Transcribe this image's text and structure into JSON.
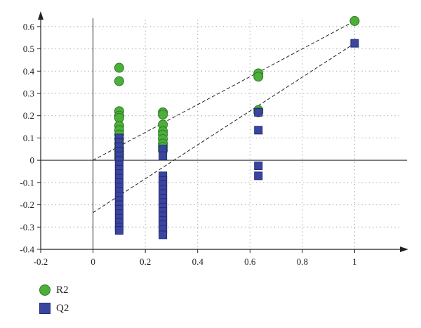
{
  "chart_data": {
    "type": "scatter",
    "xlim": [
      -0.2,
      1.2
    ],
    "ylim": [
      -0.4,
      0.65
    ],
    "x_ticks": [
      -0.2,
      0,
      0.2,
      0.4,
      0.6,
      0.8,
      1
    ],
    "y_ticks": [
      -0.4,
      -0.3,
      -0.2,
      -0.1,
      0,
      0.1,
      0.2,
      0.3,
      0.4,
      0.5,
      0.6
    ],
    "x_tick_labels": [
      "-0.2",
      "0",
      "0.2",
      "0.4",
      "0.6",
      "0.8",
      "1"
    ],
    "y_tick_labels": [
      "-0.4",
      "-0.3",
      "-0.2",
      "-0.1",
      "0",
      "0.1",
      "0.2",
      "0.3",
      "0.4",
      "0.5",
      "0.6"
    ],
    "grid": true,
    "legend_placement": "bottom-left",
    "series": [
      {
        "name": "R2",
        "marker": "circle",
        "color": "#4caf3a",
        "edge_color": "#2d7a24",
        "points": [
          [
            1,
            0.625
          ],
          [
            0.632,
            0.39
          ],
          [
            0.632,
            0.375
          ],
          [
            0.632,
            0.225
          ],
          [
            0.632,
            0.215
          ],
          [
            0.267,
            0.215
          ],
          [
            0.267,
            0.205
          ],
          [
            0.267,
            0.16
          ],
          [
            0.267,
            0.13
          ],
          [
            0.267,
            0.115
          ],
          [
            0.267,
            0.095
          ],
          [
            0.267,
            0.075
          ],
          [
            0.267,
            0.06
          ],
          [
            0.267,
            0.045
          ],
          [
            0.1,
            0.415
          ],
          [
            0.1,
            0.355
          ],
          [
            0.1,
            0.22
          ],
          [
            0.1,
            0.2
          ],
          [
            0.1,
            0.19
          ],
          [
            0.1,
            0.155
          ],
          [
            0.1,
            0.135
          ],
          [
            0.1,
            0.115
          ],
          [
            0.1,
            0.095
          ],
          [
            0.1,
            0.075
          ],
          [
            0.1,
            0.055
          ],
          [
            0.1,
            0.04
          ],
          [
            0.1,
            0.025
          ],
          [
            0.1,
            0.01
          ]
        ],
        "trend": {
          "intercept": 0,
          "slope": 0.625
        }
      },
      {
        "name": "Q2",
        "marker": "square",
        "color": "#3a45a0",
        "edge_color": "#232b72",
        "points": [
          [
            1,
            0.525
          ],
          [
            0.632,
            0.215
          ],
          [
            0.632,
            0.135
          ],
          [
            0.632,
            -0.025
          ],
          [
            0.632,
            -0.07
          ],
          [
            0.267,
            0.05
          ],
          [
            0.267,
            0.02
          ],
          [
            0.267,
            -0.07
          ],
          [
            0.267,
            -0.09
          ],
          [
            0.267,
            -0.11
          ],
          [
            0.267,
            -0.13
          ],
          [
            0.267,
            -0.15
          ],
          [
            0.267,
            -0.17
          ],
          [
            0.267,
            -0.19
          ],
          [
            0.267,
            -0.21
          ],
          [
            0.267,
            -0.23
          ],
          [
            0.267,
            -0.25
          ],
          [
            0.267,
            -0.27
          ],
          [
            0.267,
            -0.29
          ],
          [
            0.267,
            -0.31
          ],
          [
            0.267,
            -0.335
          ],
          [
            0.1,
            0.1
          ],
          [
            0.1,
            0.08
          ],
          [
            0.1,
            0.06
          ],
          [
            0.1,
            0.04
          ],
          [
            0.1,
            0.02
          ],
          [
            0.1,
            0.0
          ],
          [
            0.1,
            -0.02
          ],
          [
            0.1,
            -0.04
          ],
          [
            0.1,
            -0.06
          ],
          [
            0.1,
            -0.08
          ],
          [
            0.1,
            -0.1
          ],
          [
            0.1,
            -0.12
          ],
          [
            0.1,
            -0.14
          ],
          [
            0.1,
            -0.16
          ],
          [
            0.1,
            -0.18
          ],
          [
            0.1,
            -0.2
          ],
          [
            0.1,
            -0.22
          ],
          [
            0.1,
            -0.24
          ],
          [
            0.1,
            -0.26
          ],
          [
            0.1,
            -0.28
          ],
          [
            0.1,
            -0.3
          ],
          [
            0.1,
            -0.315
          ]
        ],
        "trend": {
          "intercept": -0.235,
          "slope": 0.76
        }
      }
    ]
  }
}
